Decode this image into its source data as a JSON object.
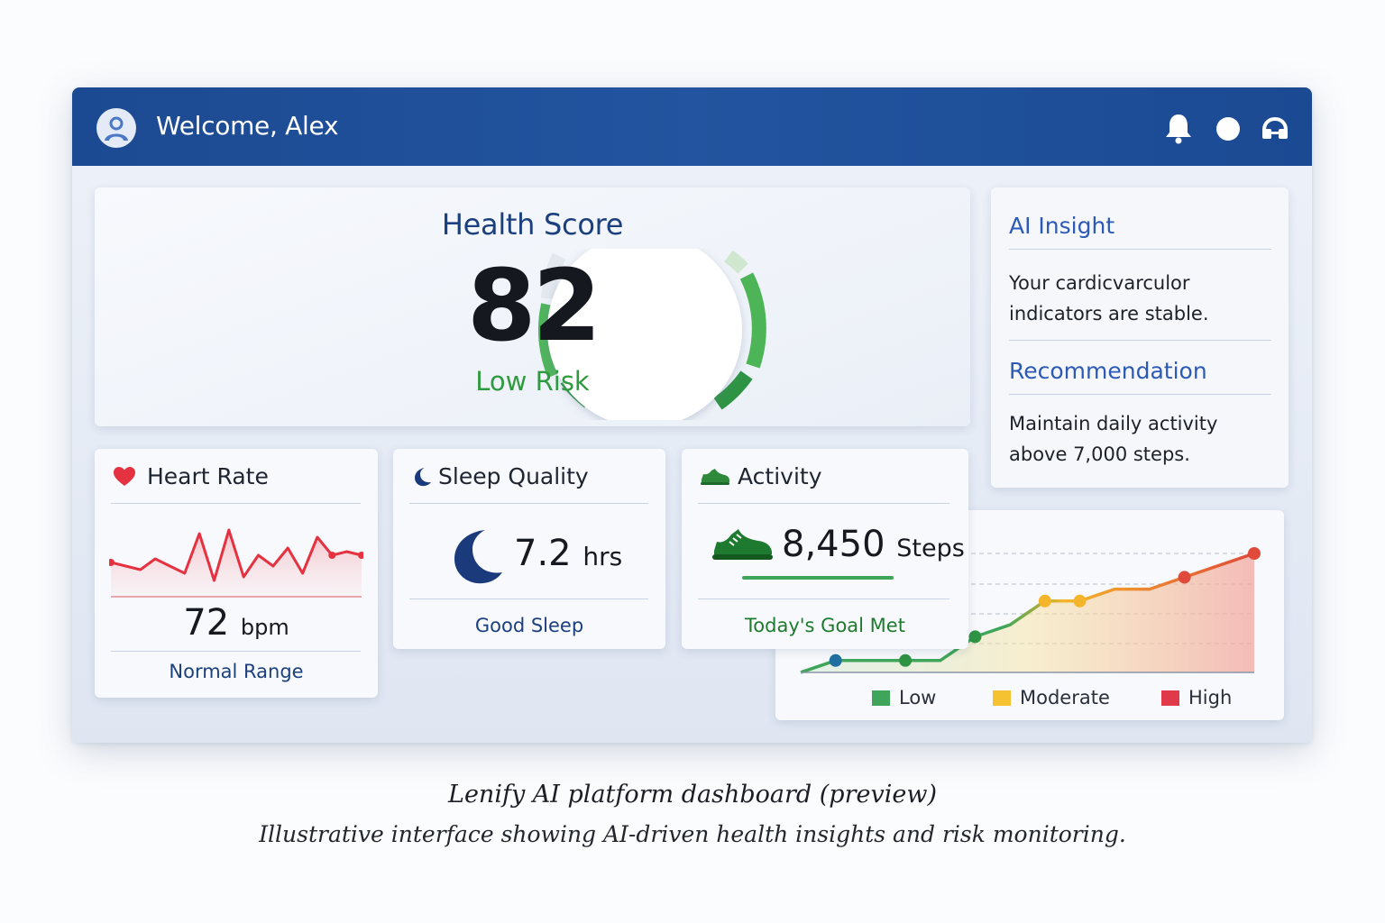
{
  "header": {
    "welcome": "Welcome, Alex",
    "icons": [
      "user-avatar",
      "bell-icon",
      "status-dot-icon",
      "headset-icon"
    ]
  },
  "health_score": {
    "title": "Health Score",
    "score": "82",
    "risk": "Low Risk",
    "gauge_fraction": 0.82
  },
  "insight": {
    "title": "AI Insight",
    "text": "Your cardicvarculor indicators are stable.",
    "rec_title": "Recommendation",
    "rec_text": "Maintain daily activity above 7,000 steps."
  },
  "heart_rate": {
    "title": "Heart Rate",
    "value": "72",
    "unit": "bpm",
    "status": "Normal Range",
    "sparkline": [
      62,
      60,
      58,
      64,
      60,
      56,
      78,
      52,
      80,
      54,
      66,
      60,
      70,
      56,
      76,
      66,
      68,
      66
    ]
  },
  "sleep": {
    "title": "Sleep Quality",
    "value": "7.2",
    "unit": "hrs",
    "status": "Good Sleep"
  },
  "activity": {
    "title": "Activity",
    "value": "8,450",
    "unit": "Steps",
    "status": "Today's Goal Met"
  },
  "risk_trend": {
    "points": [
      0,
      1,
      1,
      1,
      1,
      3,
      4,
      6,
      6,
      7,
      7,
      8,
      9,
      10
    ],
    "legend": [
      {
        "label": "Low",
        "color": "#3ea55a"
      },
      {
        "label": "Moderate",
        "color": "#f5c232"
      },
      {
        "label": "High",
        "color": "#e03a4a"
      }
    ]
  },
  "caption": {
    "title": "Lenify AI platform dashboard (preview)",
    "subtitle": "Illustrative interface showing AI-driven health insights and risk monitoring."
  },
  "colors": {
    "header_blue": "#1f4e96",
    "accent_green": "#3ea55a",
    "heart_red": "#e53240",
    "sleep_navy": "#1b3a7c"
  }
}
